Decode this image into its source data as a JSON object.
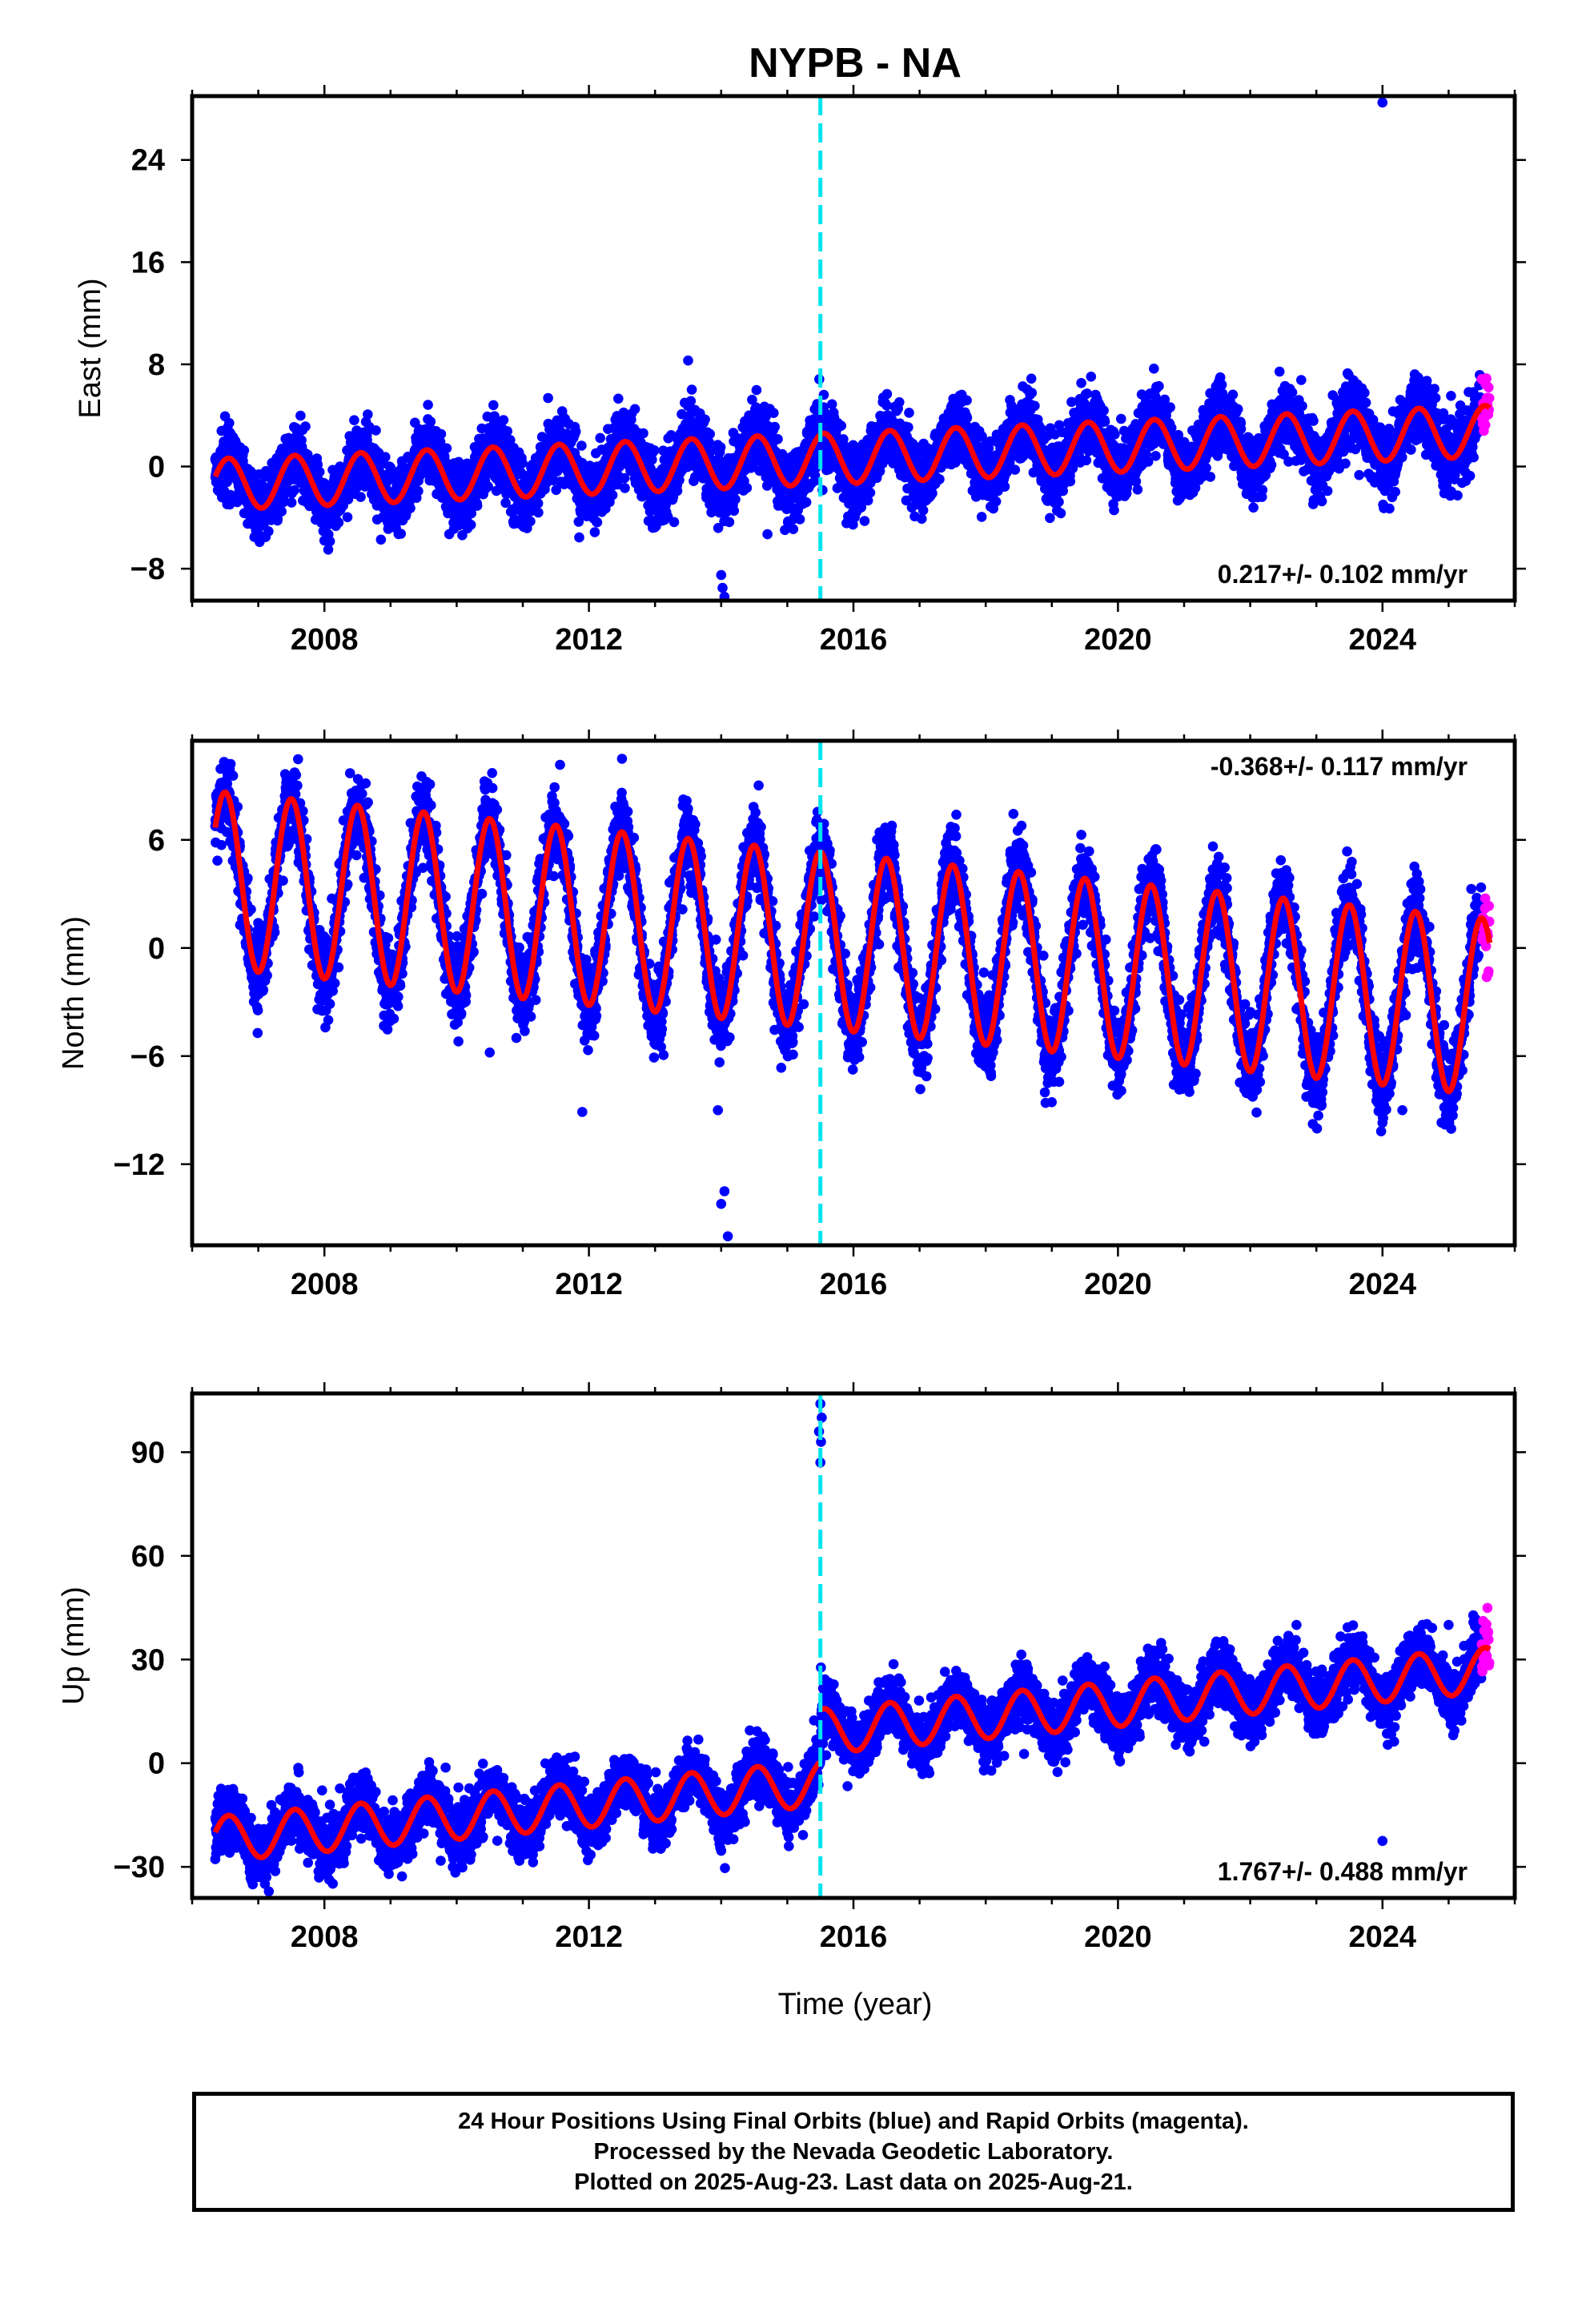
{
  "title": "NYPB - NA",
  "colors": {
    "final": "#0000ff",
    "rapid": "#ff00ff",
    "model": "#ff0000",
    "break_line": "#00e5ee"
  },
  "chart_data": [
    {
      "type": "scatter",
      "component": "east",
      "ylabel": "East (mm)",
      "xlabel": "",
      "xlim": [
        2006.0,
        2026.0
      ],
      "ylim": [
        -10.5,
        29
      ],
      "xticks": [
        2008,
        2012,
        2016,
        2020,
        2024
      ],
      "yticks": [
        -8,
        0,
        8,
        16,
        24
      ],
      "ytick_labels": [
        "−8",
        "0",
        "8",
        "16",
        "24"
      ],
      "rate_label": "0.217+/- 0.102 mm/yr",
      "rate_label_pos": "bottom-right",
      "break_epoch": 2015.5,
      "data_start": 2006.35,
      "data_end": 2025.62,
      "rapid_start": 2025.5,
      "rate": 0.217,
      "intercept": -1.4,
      "offset_at_break": 0.0,
      "annual_amp": 2.0,
      "phase_peak": 0.55,
      "noise": 1.3,
      "outliers": [
        {
          "x": 2024.0,
          "y": 28.5
        },
        {
          "x": 2014.0,
          "y": -8.5
        },
        {
          "x": 2014.02,
          "y": -9.5
        },
        {
          "x": 2014.05,
          "y": -10.2
        },
        {
          "x": 2014.7,
          "y": -5.3
        },
        {
          "x": 2013.5,
          "y": 8.3
        },
        {
          "x": 2008.0,
          "y": -5.8
        }
      ]
    },
    {
      "type": "scatter",
      "component": "north",
      "ylabel": "North (mm)",
      "xlabel": "",
      "xlim": [
        2006.0,
        2026.0
      ],
      "ylim": [
        -16.5,
        11.5
      ],
      "xticks": [
        2008,
        2012,
        2016,
        2020,
        2024
      ],
      "yticks": [
        -12,
        -6,
        0,
        6
      ],
      "ytick_labels": [
        "−12",
        "−6",
        "0",
        "6"
      ],
      "rate_label": "-0.368+/- 0.117 mm/yr",
      "rate_label_pos": "top-right",
      "break_epoch": 2015.5,
      "data_start": 2006.35,
      "data_end": 2025.62,
      "rapid_start": 2025.5,
      "rate": -0.368,
      "intercept": 3.8,
      "offset_at_break": 0.0,
      "annual_amp": 4.9,
      "phase_peak": 0.5,
      "noise": 1.1,
      "outliers": [
        {
          "x": 2014.05,
          "y": -13.5
        },
        {
          "x": 2014.0,
          "y": -14.2
        },
        {
          "x": 2014.1,
          "y": -16.0
        },
        {
          "x": 2013.95,
          "y": -9.0
        },
        {
          "x": 2011.9,
          "y": -9.1
        },
        {
          "x": 2012.5,
          "y": 10.5
        },
        {
          "x": 2010.5,
          "y": -5.8
        },
        {
          "x": 2024.0,
          "y": -9.7
        },
        {
          "x": 2024.3,
          "y": -9.0
        }
      ]
    },
    {
      "type": "scatter",
      "component": "up",
      "ylabel": "Up (mm)",
      "xlabel": "Time (year)",
      "xlim": [
        2006.0,
        2026.0
      ],
      "ylim": [
        -39,
        107
      ],
      "xticks": [
        2008,
        2012,
        2016,
        2020,
        2024
      ],
      "yticks": [
        -30,
        0,
        30,
        60,
        90
      ],
      "ytick_labels": [
        "−30",
        "0",
        "30",
        "60",
        "90"
      ],
      "rate_label": "1.767+/- 0.488 mm/yr",
      "rate_label_pos": "bottom-right",
      "break_epoch": 2015.5,
      "data_start": 2006.35,
      "data_end": 2025.62,
      "rapid_start": 2025.5,
      "rate": 1.767,
      "intercept": -22.0,
      "offset_at_break": 15.0,
      "annual_amp": 6.5,
      "phase_peak": 0.55,
      "noise": 4.2,
      "outliers": [
        {
          "x": 2015.5,
          "y": 104
        },
        {
          "x": 2015.52,
          "y": 100
        },
        {
          "x": 2015.48,
          "y": 96
        },
        {
          "x": 2015.51,
          "y": 93
        },
        {
          "x": 2015.5,
          "y": 87
        },
        {
          "x": 2024.0,
          "y": -22.5
        },
        {
          "x": 2022.7,
          "y": 40
        },
        {
          "x": 2025.0,
          "y": 40
        }
      ]
    }
  ],
  "caption": {
    "line1": "24 Hour Positions Using Final Orbits (blue) and Rapid Orbits (magenta).",
    "line2": "Processed by the Nevada Geodetic Laboratory.",
    "line3": "Plotted on 2025-Aug-23. Last data on 2025-Aug-21."
  }
}
